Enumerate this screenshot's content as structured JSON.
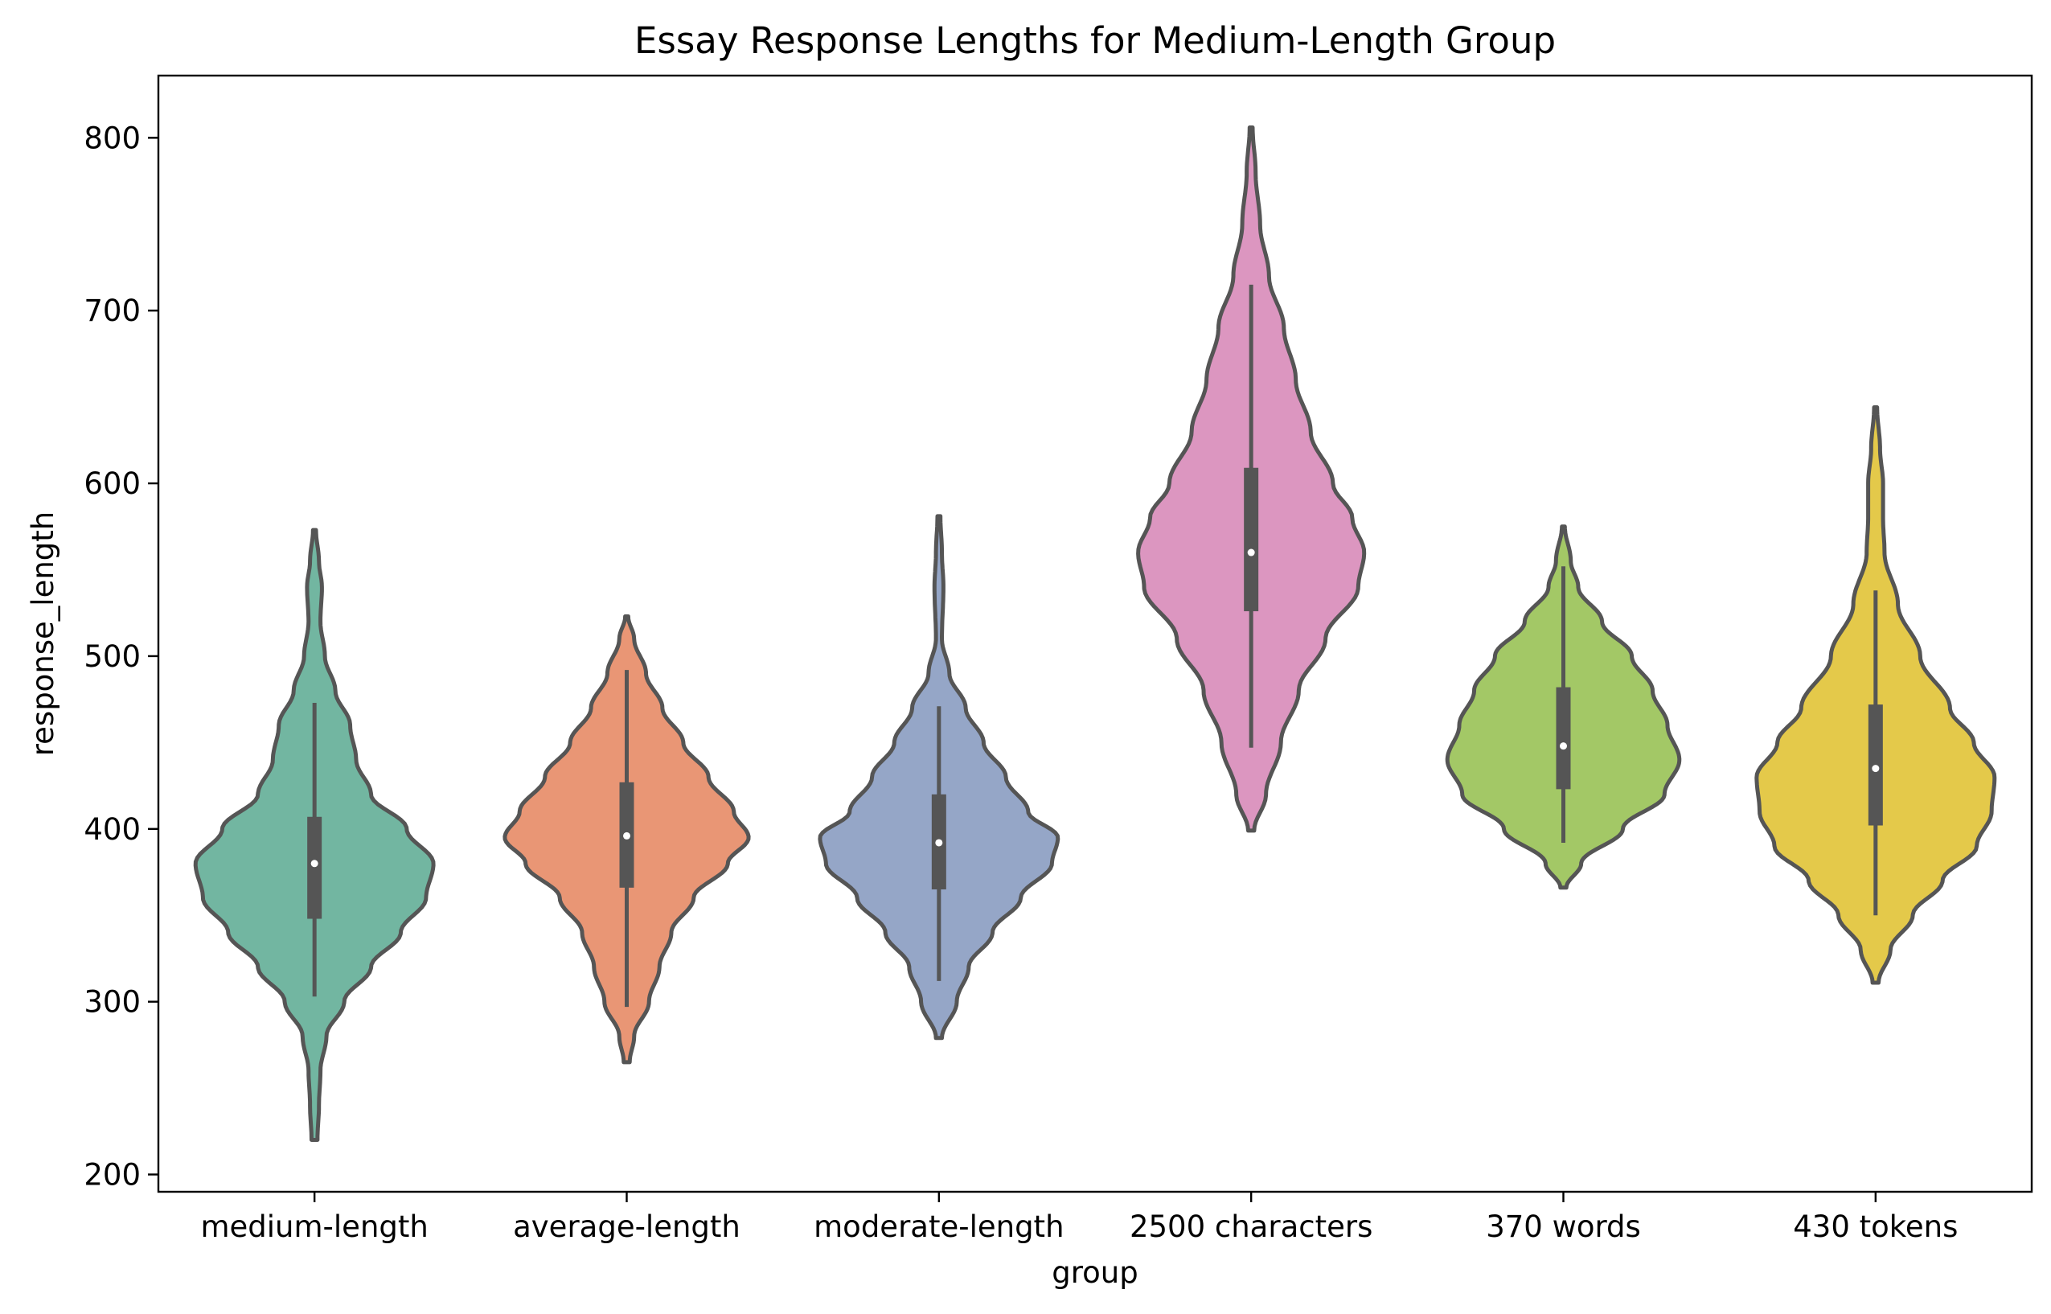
{
  "chart_data": {
    "type": "violin",
    "title": "Essay Response Lengths for Medium-Length Group",
    "xlabel": "group",
    "ylabel": "response_length",
    "ylim": [
      190,
      836
    ],
    "yticks": [
      200,
      300,
      400,
      500,
      600,
      700,
      800
    ],
    "ytick_labels": [
      "200",
      "300",
      "400",
      "500",
      "600",
      "700",
      "800"
    ],
    "grid": false,
    "legend": "none",
    "categories": [
      "medium-length",
      "average-length",
      "moderate-length",
      "2500 characters",
      "370 words",
      "430 tokens"
    ],
    "series": [
      {
        "category": "medium-length",
        "color": "#72b6a1",
        "min": 220,
        "max": 573,
        "whisker_low": 303,
        "q1": 348,
        "median": 380,
        "q3": 407,
        "whisker_high": 473,
        "density": [
          [
            220,
            0.02
          ],
          [
            240,
            0.03
          ],
          [
            260,
            0.04
          ],
          [
            280,
            0.08
          ],
          [
            300,
            0.2
          ],
          [
            320,
            0.38
          ],
          [
            340,
            0.58
          ],
          [
            360,
            0.75
          ],
          [
            380,
            0.8
          ],
          [
            400,
            0.62
          ],
          [
            420,
            0.38
          ],
          [
            440,
            0.28
          ],
          [
            460,
            0.24
          ],
          [
            480,
            0.14
          ],
          [
            500,
            0.07
          ],
          [
            520,
            0.04
          ],
          [
            540,
            0.05
          ],
          [
            555,
            0.03
          ],
          [
            573,
            0.01
          ]
        ]
      },
      {
        "category": "average-length",
        "color": "#e99675",
        "min": 265,
        "max": 523,
        "whisker_low": 297,
        "q1": 366,
        "median": 396,
        "q3": 427,
        "whisker_high": 492,
        "density": [
          [
            265,
            0.02
          ],
          [
            280,
            0.05
          ],
          [
            300,
            0.15
          ],
          [
            320,
            0.22
          ],
          [
            340,
            0.3
          ],
          [
            360,
            0.45
          ],
          [
            380,
            0.68
          ],
          [
            395,
            0.82
          ],
          [
            410,
            0.72
          ],
          [
            430,
            0.55
          ],
          [
            450,
            0.38
          ],
          [
            470,
            0.24
          ],
          [
            490,
            0.13
          ],
          [
            510,
            0.05
          ],
          [
            523,
            0.01
          ]
        ]
      },
      {
        "category": "moderate-length",
        "color": "#95a6c7",
        "min": 279,
        "max": 581,
        "whisker_low": 312,
        "q1": 365,
        "median": 392,
        "q3": 420,
        "whisker_high": 471,
        "density": [
          [
            279,
            0.02
          ],
          [
            300,
            0.12
          ],
          [
            320,
            0.2
          ],
          [
            340,
            0.36
          ],
          [
            360,
            0.55
          ],
          [
            380,
            0.76
          ],
          [
            395,
            0.8
          ],
          [
            410,
            0.6
          ],
          [
            430,
            0.45
          ],
          [
            450,
            0.3
          ],
          [
            470,
            0.18
          ],
          [
            490,
            0.07
          ],
          [
            510,
            0.02
          ],
          [
            540,
            0.03
          ],
          [
            560,
            0.02
          ],
          [
            581,
            0.01
          ]
        ]
      },
      {
        "category": "2500 characters",
        "color": "#dc96c0",
        "min": 399,
        "max": 806,
        "whisker_low": 447,
        "q1": 526,
        "median": 560,
        "q3": 609,
        "whisker_high": 715,
        "density": [
          [
            399,
            0.02
          ],
          [
            420,
            0.1
          ],
          [
            450,
            0.2
          ],
          [
            480,
            0.32
          ],
          [
            510,
            0.5
          ],
          [
            540,
            0.72
          ],
          [
            560,
            0.76
          ],
          [
            580,
            0.68
          ],
          [
            600,
            0.55
          ],
          [
            630,
            0.4
          ],
          [
            660,
            0.3
          ],
          [
            690,
            0.22
          ],
          [
            720,
            0.12
          ],
          [
            750,
            0.06
          ],
          [
            780,
            0.03
          ],
          [
            806,
            0.01
          ]
        ]
      },
      {
        "category": "370 words",
        "color": "#a3c866",
        "min": 366,
        "max": 575,
        "whisker_low": 392,
        "q1": 423,
        "median": 448,
        "q3": 482,
        "whisker_high": 552,
        "density": [
          [
            366,
            0.02
          ],
          [
            380,
            0.12
          ],
          [
            400,
            0.4
          ],
          [
            420,
            0.68
          ],
          [
            440,
            0.78
          ],
          [
            460,
            0.7
          ],
          [
            480,
            0.6
          ],
          [
            500,
            0.46
          ],
          [
            520,
            0.26
          ],
          [
            540,
            0.1
          ],
          [
            555,
            0.05
          ],
          [
            575,
            0.01
          ]
        ]
      },
      {
        "category": "430 tokens",
        "color": "#e4c94a",
        "min": 311,
        "max": 644,
        "whisker_low": 350,
        "q1": 402,
        "median": 435,
        "q3": 472,
        "whisker_high": 538,
        "density": [
          [
            311,
            0.02
          ],
          [
            330,
            0.1
          ],
          [
            350,
            0.25
          ],
          [
            370,
            0.45
          ],
          [
            390,
            0.68
          ],
          [
            410,
            0.78
          ],
          [
            430,
            0.8
          ],
          [
            450,
            0.66
          ],
          [
            470,
            0.5
          ],
          [
            500,
            0.3
          ],
          [
            530,
            0.15
          ],
          [
            560,
            0.06
          ],
          [
            580,
            0.05
          ],
          [
            600,
            0.05
          ],
          [
            620,
            0.03
          ],
          [
            644,
            0.01
          ]
        ]
      }
    ]
  }
}
